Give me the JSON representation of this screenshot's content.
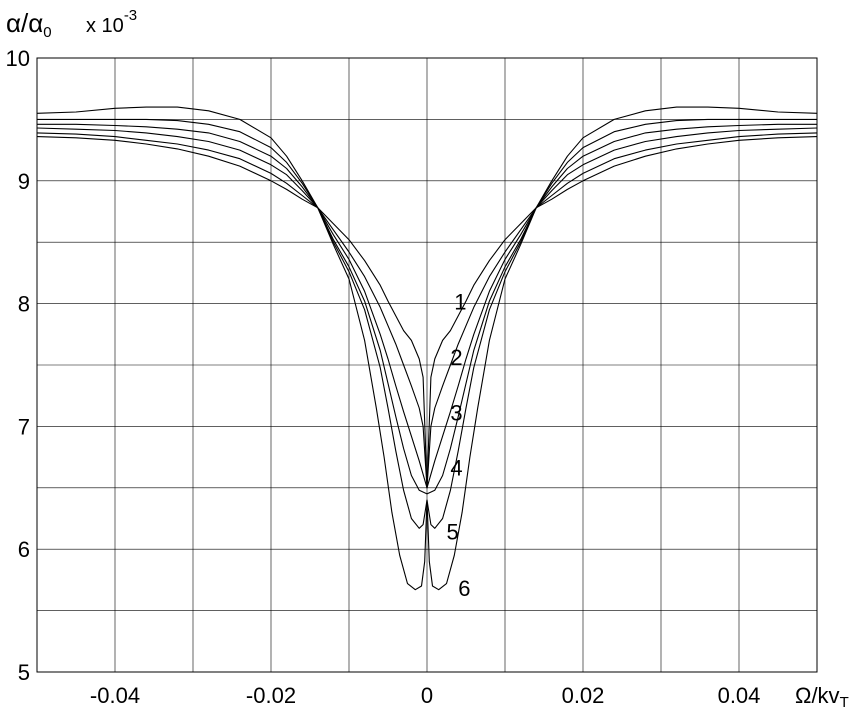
{
  "chart_data": {
    "type": "line",
    "ylabel": "α/α₀",
    "ylabel_parts": {
      "main": "α/α",
      "sub": "0"
    },
    "y_multiplier": {
      "prefix": "x 10",
      "exponent": "-3"
    },
    "xlabel": "Ω/kvT",
    "xlabel_parts": {
      "main": "Ω/kv",
      "sub": "T"
    },
    "xlim": [
      -0.05,
      0.05
    ],
    "ylim": [
      5,
      10
    ],
    "x_tick_labels": [
      {
        "value": -0.04,
        "label": "-0.04"
      },
      {
        "value": -0.02,
        "label": "-0.02"
      },
      {
        "value": 0,
        "label": "0"
      },
      {
        "value": 0.02,
        "label": "0.02"
      },
      {
        "value": 0.04,
        "label": "0.04"
      }
    ],
    "y_tick_labels": [
      {
        "value": 5,
        "label": "5"
      },
      {
        "value": 6,
        "label": "6"
      },
      {
        "value": 7,
        "label": "7"
      },
      {
        "value": 8,
        "label": "8"
      },
      {
        "value": 9,
        "label": "9"
      },
      {
        "value": 10,
        "label": "10"
      }
    ],
    "grid": true,
    "series": [
      {
        "name": "1",
        "x": [
          0,
          0.0005,
          0.001,
          0.002,
          0.003,
          0.004,
          0.005,
          0.006,
          0.008,
          0.01,
          0.012,
          0.014,
          0.016,
          0.018,
          0.02,
          0.024,
          0.028,
          0.032,
          0.036,
          0.04,
          0.045,
          0.05
        ],
        "y": [
          6.5,
          7.4,
          7.55,
          7.7,
          7.78,
          7.9,
          8.02,
          8.15,
          8.35,
          8.52,
          8.65,
          8.78,
          9.0,
          9.2,
          9.35,
          9.5,
          9.57,
          9.6,
          9.6,
          9.59,
          9.56,
          9.55
        ],
        "label_pos": [
          0.0035,
          7.95
        ]
      },
      {
        "name": "2",
        "x": [
          0,
          0.0005,
          0.001,
          0.002,
          0.003,
          0.004,
          0.005,
          0.006,
          0.008,
          0.01,
          0.012,
          0.014,
          0.016,
          0.018,
          0.02,
          0.024,
          0.028,
          0.032,
          0.036,
          0.04,
          0.045,
          0.05
        ],
        "y": [
          6.5,
          7.0,
          7.15,
          7.33,
          7.5,
          7.67,
          7.82,
          7.97,
          8.22,
          8.42,
          8.6,
          8.78,
          8.98,
          9.15,
          9.27,
          9.4,
          9.46,
          9.49,
          9.5,
          9.5,
          9.5,
          9.5
        ],
        "label_pos": [
          0.003,
          7.5
        ]
      },
      {
        "name": "3",
        "x": [
          0,
          0.001,
          0.002,
          0.003,
          0.004,
          0.005,
          0.006,
          0.008,
          0.01,
          0.012,
          0.014,
          0.016,
          0.018,
          0.02,
          0.024,
          0.028,
          0.032,
          0.036,
          0.04,
          0.045,
          0.05
        ],
        "y": [
          6.5,
          6.72,
          6.92,
          7.12,
          7.33,
          7.55,
          7.75,
          8.1,
          8.36,
          8.56,
          8.78,
          8.95,
          9.1,
          9.2,
          9.32,
          9.39,
          9.42,
          9.44,
          9.45,
          9.46,
          9.46
        ],
        "label_pos": [
          0.003,
          7.05
        ]
      },
      {
        "name": "4",
        "x": [
          0,
          0.001,
          0.002,
          0.003,
          0.004,
          0.005,
          0.006,
          0.008,
          0.01,
          0.012,
          0.014,
          0.016,
          0.018,
          0.02,
          0.024,
          0.028,
          0.032,
          0.036,
          0.04,
          0.045,
          0.05
        ],
        "y": [
          6.45,
          6.48,
          6.6,
          6.82,
          7.08,
          7.35,
          7.62,
          8.02,
          8.3,
          8.52,
          8.78,
          8.92,
          9.05,
          9.13,
          9.25,
          9.32,
          9.36,
          9.39,
          9.41,
          9.42,
          9.43
        ],
        "label_pos": [
          0.003,
          6.6
        ]
      },
      {
        "name": "5",
        "x": [
          0,
          0.0005,
          0.001,
          0.002,
          0.003,
          0.004,
          0.005,
          0.006,
          0.008,
          0.01,
          0.012,
          0.014,
          0.016,
          0.018,
          0.02,
          0.024,
          0.028,
          0.032,
          0.036,
          0.04,
          0.045,
          0.05
        ],
        "y": [
          6.4,
          6.2,
          6.17,
          6.25,
          6.48,
          6.8,
          7.15,
          7.48,
          7.95,
          8.26,
          8.5,
          8.78,
          8.88,
          8.98,
          9.06,
          9.18,
          9.25,
          9.3,
          9.33,
          9.36,
          9.38,
          9.39
        ],
        "label_pos": [
          0.0025,
          6.08
        ]
      },
      {
        "name": "6",
        "x": [
          0,
          0.0003,
          0.0007,
          0.0015,
          0.0025,
          0.0035,
          0.0045,
          0.0055,
          0.0065,
          0.008,
          0.01,
          0.012,
          0.014,
          0.016,
          0.018,
          0.02,
          0.024,
          0.028,
          0.032,
          0.036,
          0.04,
          0.045,
          0.05
        ],
        "y": [
          6.4,
          5.9,
          5.7,
          5.67,
          5.72,
          5.95,
          6.3,
          6.75,
          7.15,
          7.7,
          8.2,
          8.48,
          8.78,
          8.85,
          8.93,
          9.0,
          9.12,
          9.2,
          9.26,
          9.3,
          9.33,
          9.35,
          9.36
        ],
        "label_pos": [
          0.004,
          5.62
        ]
      }
    ]
  }
}
